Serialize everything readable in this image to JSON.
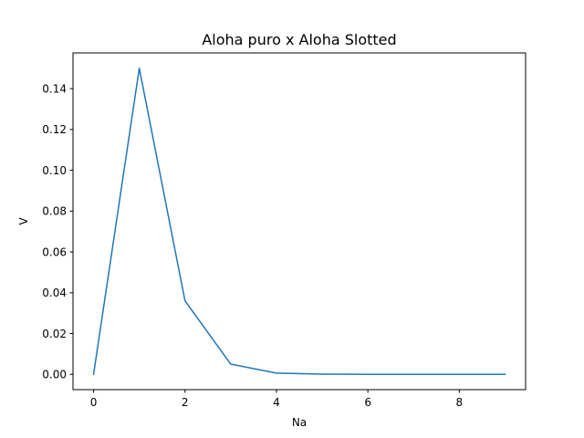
{
  "chart_data": {
    "type": "line",
    "title": "Aloha puro x Aloha Slotted",
    "xlabel": "Na",
    "ylabel": "V",
    "xlim": [
      -0.45,
      9.45
    ],
    "ylim": [
      -0.0075,
      0.1575
    ],
    "xticks": [
      0,
      2,
      4,
      6,
      8
    ],
    "xtick_labels": [
      "0",
      "2",
      "4",
      "6",
      "8"
    ],
    "yticks": [
      0.0,
      0.02,
      0.04,
      0.06,
      0.08,
      0.1,
      0.12,
      0.14
    ],
    "ytick_labels": [
      "0.00",
      "0.02",
      "0.04",
      "0.06",
      "0.08",
      "0.10",
      "0.12",
      "0.14"
    ],
    "grid": false,
    "series": [
      {
        "color": "#1f77b4",
        "x": [
          0,
          1,
          2,
          3,
          4,
          5,
          6,
          7,
          8,
          9
        ],
        "y": [
          0.0,
          0.15,
          0.036,
          0.005,
          0.0006,
          0.0001,
          0.0,
          0.0,
          0.0,
          0.0
        ]
      }
    ]
  }
}
